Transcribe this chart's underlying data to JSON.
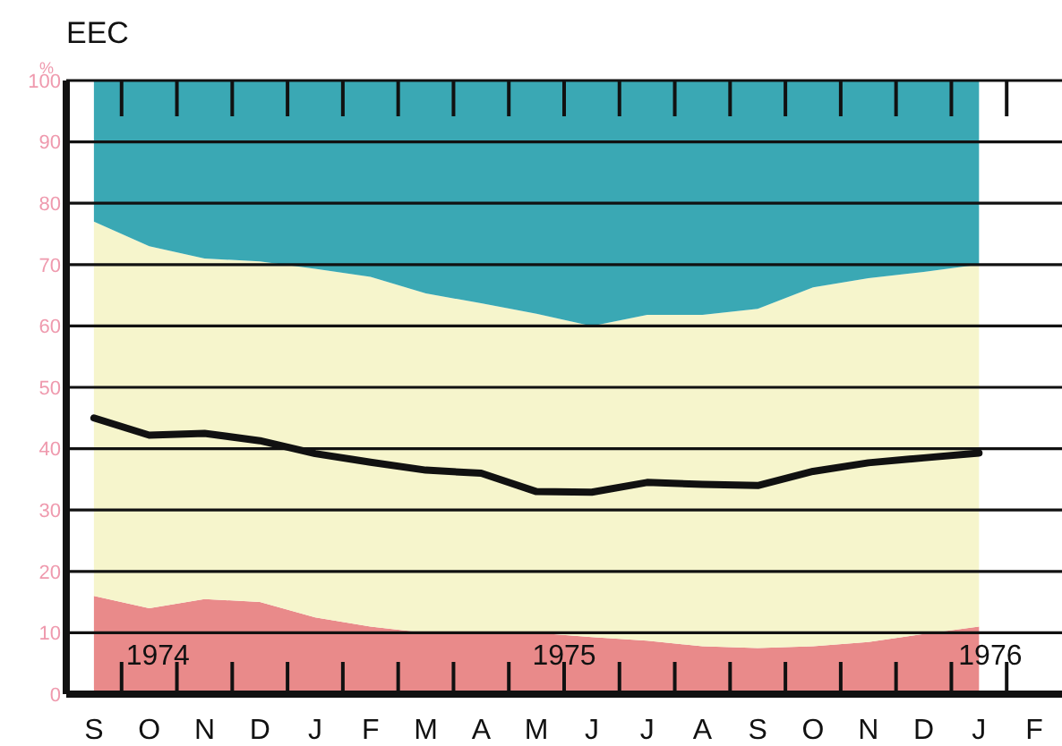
{
  "chart_data": {
    "type": "area",
    "title": "EEC",
    "ylabel": "%",
    "stacked": true,
    "grid": "y",
    "categories": [
      "S",
      "O",
      "N",
      "D",
      "J",
      "F",
      "M",
      "A",
      "M",
      "J",
      "J",
      "A",
      "S",
      "O",
      "N",
      "D",
      "J",
      "F"
    ],
    "ylim": [
      0,
      100
    ],
    "yticks": [
      0,
      10,
      20,
      30,
      40,
      50,
      60,
      70,
      80,
      90,
      100
    ],
    "series": [
      {
        "color": "#e98a8a",
        "values": [
          16,
          14,
          15.5,
          15,
          12.5,
          11,
          10,
          10,
          10,
          9.3,
          8.7,
          7.8,
          7.5,
          7.8,
          8.5,
          9.8,
          11,
          null
        ]
      },
      {
        "color": "#f6f5cc",
        "values": [
          61,
          59,
          55.5,
          55.5,
          56.8,
          57,
          55.3,
          53.7,
          52,
          50.7,
          53.1,
          54,
          55.3,
          58.5,
          59.3,
          59,
          59,
          null
        ]
      },
      {
        "color": "#3aa8b4",
        "values": [
          23,
          27,
          29,
          29.5,
          30.7,
          32,
          34.7,
          36.3,
          38,
          40,
          38.2,
          38.2,
          37.2,
          33.7,
          32.2,
          31.2,
          30,
          null
        ]
      },
      {
        "type": "line",
        "color": "#111111",
        "values": [
          45,
          42.2,
          42.5,
          41.3,
          39.2,
          37.8,
          36.5,
          36,
          33,
          32.9,
          34.5,
          34.2,
          34,
          36.3,
          37.7,
          38.5,
          39.3,
          null
        ]
      }
    ],
    "annotations": [
      "1974",
      "1975",
      "1976"
    ]
  }
}
